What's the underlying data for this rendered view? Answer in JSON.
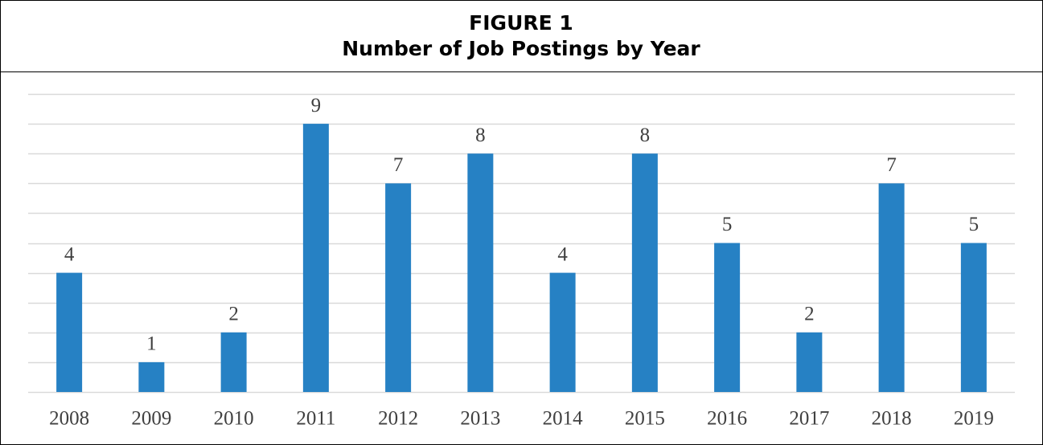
{
  "chart_data": {
    "type": "bar",
    "title": "FIGURE 1",
    "subtitle": "Number of Job Postings by Year",
    "categories": [
      "2008",
      "2009",
      "2010",
      "2011",
      "2012",
      "2013",
      "2014",
      "2015",
      "2016",
      "2017",
      "2018",
      "2019"
    ],
    "values": [
      4,
      1,
      2,
      9,
      7,
      8,
      4,
      8,
      5,
      2,
      7,
      5
    ],
    "color": "#2681c4",
    "ylim": [
      0,
      10
    ],
    "yticks": [
      0,
      1,
      2,
      3,
      4,
      5,
      6,
      7,
      8,
      9,
      10
    ],
    "grid": true
  }
}
